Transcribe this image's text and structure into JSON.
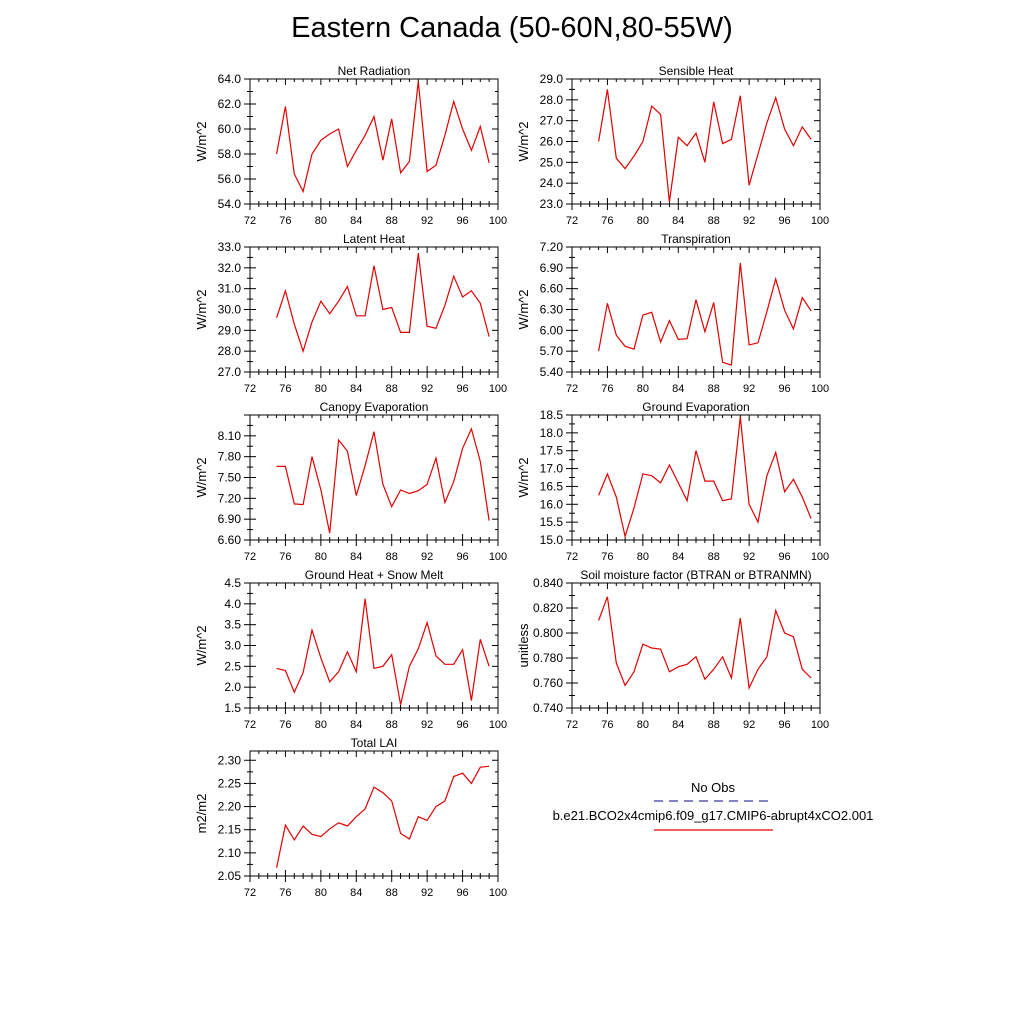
{
  "figure_title": "Eastern Canada (50-60N,80-55W)",
  "legend": {
    "obs_label": "No Obs",
    "obs_color": "#3a3aa0",
    "model_label": "b.e21.BCO2x4cmip6.f09_g17.CMIP6-abrupt4xCO2.001",
    "model_color": "#e00000"
  },
  "chart_data": [
    {
      "type": "line",
      "title": "Net Radiation",
      "ylabel": "W/m^2",
      "xlim": [
        72,
        100
      ],
      "xticks": [
        "72",
        "76",
        "80",
        "84",
        "88",
        "92",
        "96",
        "100"
      ],
      "ylim": [
        54.0,
        64.0
      ],
      "yticks": [
        "54.0",
        "56.0",
        "58.0",
        "60.0",
        "62.0",
        "64.0"
      ],
      "x": [
        75,
        76,
        77,
        78,
        79,
        80,
        81,
        82,
        83,
        84,
        85,
        86,
        87,
        88,
        89,
        90,
        91,
        92,
        93,
        94,
        95,
        96,
        97,
        98,
        99
      ],
      "series": [
        {
          "values": [
            58.0,
            61.8,
            56.4,
            55.0,
            58.0,
            59.1,
            59.6,
            60.0,
            57.0,
            58.3,
            59.5,
            61.0,
            57.5,
            60.8,
            56.5,
            57.4,
            63.8,
            56.6,
            57.1,
            59.5,
            62.2,
            60.0,
            58.3,
            60.2,
            57.3
          ]
        }
      ]
    },
    {
      "type": "line",
      "title": "Sensible Heat",
      "ylabel": "W/m^2",
      "xlim": [
        72,
        100
      ],
      "xticks": [
        "72",
        "76",
        "80",
        "84",
        "88",
        "92",
        "96",
        "100"
      ],
      "ylim": [
        23.0,
        29.0
      ],
      "yticks": [
        "23.0",
        "24.0",
        "25.0",
        "26.0",
        "27.0",
        "28.0",
        "29.0"
      ],
      "x": [
        75,
        76,
        77,
        78,
        79,
        80,
        81,
        82,
        83,
        84,
        85,
        86,
        87,
        88,
        89,
        90,
        91,
        92,
        93,
        94,
        95,
        96,
        97,
        98,
        99
      ],
      "series": [
        {
          "values": [
            26.0,
            28.5,
            25.2,
            24.7,
            25.3,
            26.0,
            27.7,
            27.3,
            23.1,
            26.2,
            25.8,
            26.4,
            25.0,
            27.9,
            25.9,
            26.1,
            28.2,
            23.9,
            25.4,
            26.9,
            28.1,
            26.6,
            25.8,
            26.7,
            26.1
          ]
        }
      ]
    },
    {
      "type": "line",
      "title": "Latent Heat",
      "ylabel": "W/m^2",
      "xlim": [
        72,
        100
      ],
      "xticks": [
        "72",
        "76",
        "80",
        "84",
        "88",
        "92",
        "96",
        "100"
      ],
      "ylim": [
        27.0,
        33.0
      ],
      "yticks": [
        "27.0",
        "28.0",
        "29.0",
        "30.0",
        "31.0",
        "32.0",
        "33.0"
      ],
      "x": [
        75,
        76,
        77,
        78,
        79,
        80,
        81,
        82,
        83,
        84,
        85,
        86,
        87,
        88,
        89,
        90,
        91,
        92,
        93,
        94,
        95,
        96,
        97,
        98,
        99
      ],
      "series": [
        {
          "values": [
            29.6,
            30.9,
            29.3,
            28.0,
            29.4,
            30.4,
            29.8,
            30.4,
            31.1,
            29.7,
            29.7,
            32.1,
            30.0,
            30.1,
            28.9,
            28.9,
            32.7,
            29.2,
            29.1,
            30.2,
            31.6,
            30.6,
            30.9,
            30.3,
            28.7
          ]
        }
      ]
    },
    {
      "type": "line",
      "title": "Transpiration",
      "ylabel": "W/m^2",
      "xlim": [
        72,
        100
      ],
      "xticks": [
        "72",
        "76",
        "80",
        "84",
        "88",
        "92",
        "96",
        "100"
      ],
      "ylim": [
        5.4,
        7.2
      ],
      "yticks": [
        "5.40",
        "5.70",
        "6.00",
        "6.30",
        "6.60",
        "6.90",
        "7.20"
      ],
      "x": [
        75,
        76,
        77,
        78,
        79,
        80,
        81,
        82,
        83,
        84,
        85,
        86,
        87,
        88,
        89,
        90,
        91,
        92,
        93,
        94,
        95,
        96,
        97,
        98,
        99
      ],
      "series": [
        {
          "values": [
            5.7,
            6.39,
            5.93,
            5.77,
            5.73,
            6.22,
            6.26,
            5.83,
            6.14,
            5.87,
            5.88,
            6.44,
            5.98,
            6.4,
            5.54,
            5.5,
            6.97,
            5.79,
            5.82,
            6.27,
            6.74,
            6.29,
            6.02,
            6.47,
            6.28
          ]
        }
      ]
    },
    {
      "type": "line",
      "title": "Canopy Evaporation",
      "ylabel": "W/m^2",
      "xlim": [
        72,
        100
      ],
      "xticks": [
        "72",
        "76",
        "80",
        "84",
        "88",
        "92",
        "96",
        "100"
      ],
      "ylim": [
        6.6,
        8.4
      ],
      "yticks": [
        "6.60",
        "6.90",
        "7.20",
        "7.50",
        "7.80",
        "8.10"
      ],
      "x": [
        75,
        76,
        77,
        78,
        79,
        80,
        81,
        82,
        83,
        84,
        85,
        86,
        87,
        88,
        89,
        90,
        91,
        92,
        93,
        94,
        95,
        96,
        97,
        98,
        99
      ],
      "series": [
        {
          "values": [
            7.66,
            7.66,
            7.12,
            7.11,
            7.8,
            7.32,
            6.7,
            8.04,
            7.88,
            7.24,
            7.67,
            8.16,
            7.4,
            7.08,
            7.32,
            7.27,
            7.31,
            7.4,
            7.78,
            7.14,
            7.44,
            7.92,
            8.2,
            7.73,
            6.88
          ]
        }
      ]
    },
    {
      "type": "line",
      "title": "Ground Evaporation",
      "ylabel": "W/m^2",
      "xlim": [
        72,
        100
      ],
      "xticks": [
        "72",
        "76",
        "80",
        "84",
        "88",
        "92",
        "96",
        "100"
      ],
      "ylim": [
        15.0,
        18.5
      ],
      "yticks": [
        "15.0",
        "15.5",
        "16.0",
        "16.5",
        "17.0",
        "17.5",
        "18.0",
        "18.5"
      ],
      "x": [
        75,
        76,
        77,
        78,
        79,
        80,
        81,
        82,
        83,
        84,
        85,
        86,
        87,
        88,
        89,
        90,
        91,
        92,
        93,
        94,
        95,
        96,
        97,
        98,
        99
      ],
      "series": [
        {
          "values": [
            16.25,
            16.85,
            16.2,
            15.1,
            15.9,
            16.85,
            16.8,
            16.6,
            17.1,
            16.6,
            16.1,
            17.5,
            16.65,
            16.65,
            16.1,
            16.15,
            18.45,
            16.0,
            15.5,
            16.8,
            17.45,
            16.35,
            16.7,
            16.2,
            15.6
          ]
        }
      ]
    },
    {
      "type": "line",
      "title": "Ground Heat + Snow Melt",
      "ylabel": "W/m^2",
      "xlim": [
        72,
        100
      ],
      "xticks": [
        "72",
        "76",
        "80",
        "84",
        "88",
        "92",
        "96",
        "100"
      ],
      "ylim": [
        1.5,
        4.5
      ],
      "yticks": [
        "1.5",
        "2.0",
        "2.5",
        "3.0",
        "3.5",
        "4.0",
        "4.5"
      ],
      "x": [
        75,
        76,
        77,
        78,
        79,
        80,
        81,
        82,
        83,
        84,
        85,
        86,
        87,
        88,
        89,
        90,
        91,
        92,
        93,
        94,
        95,
        96,
        97,
        98,
        99
      ],
      "series": [
        {
          "values": [
            2.45,
            2.4,
            1.88,
            2.35,
            3.37,
            2.7,
            2.13,
            2.37,
            2.85,
            2.37,
            4.12,
            2.45,
            2.5,
            2.78,
            1.58,
            2.5,
            2.92,
            3.55,
            2.75,
            2.55,
            2.55,
            2.9,
            1.68,
            3.15,
            2.5
          ]
        }
      ]
    },
    {
      "type": "line",
      "title": "Soil moisture factor (BTRAN or BTRANMN)",
      "ylabel": "unitless",
      "xlim": [
        72,
        100
      ],
      "xticks": [
        "72",
        "76",
        "80",
        "84",
        "88",
        "92",
        "96",
        "100"
      ],
      "ylim": [
        0.74,
        0.84
      ],
      "yticks": [
        "0.740",
        "0.760",
        "0.780",
        "0.800",
        "0.820",
        "0.840"
      ],
      "x": [
        75,
        76,
        77,
        78,
        79,
        80,
        81,
        82,
        83,
        84,
        85,
        86,
        87,
        88,
        89,
        90,
        91,
        92,
        93,
        94,
        95,
        96,
        97,
        98,
        99
      ],
      "series": [
        {
          "values": [
            0.81,
            0.829,
            0.776,
            0.758,
            0.769,
            0.791,
            0.788,
            0.787,
            0.769,
            0.773,
            0.775,
            0.781,
            0.763,
            0.771,
            0.781,
            0.764,
            0.812,
            0.756,
            0.771,
            0.781,
            0.818,
            0.8,
            0.797,
            0.771,
            0.764
          ]
        }
      ]
    },
    {
      "type": "line",
      "title": "Total LAI",
      "ylabel": "m2/m2",
      "xlim": [
        72,
        100
      ],
      "xticks": [
        "72",
        "76",
        "80",
        "84",
        "88",
        "92",
        "96",
        "100"
      ],
      "ylim": [
        2.05,
        2.32
      ],
      "yticks": [
        "2.05",
        "2.10",
        "2.15",
        "2.20",
        "2.25",
        "2.30"
      ],
      "x": [
        75,
        76,
        77,
        78,
        79,
        80,
        81,
        82,
        83,
        84,
        85,
        86,
        87,
        88,
        89,
        90,
        91,
        92,
        93,
        94,
        95,
        96,
        97,
        98,
        99
      ],
      "series": [
        {
          "values": [
            2.068,
            2.16,
            2.128,
            2.158,
            2.14,
            2.135,
            2.152,
            2.165,
            2.158,
            2.178,
            2.195,
            2.242,
            2.23,
            2.212,
            2.142,
            2.13,
            2.178,
            2.17,
            2.2,
            2.212,
            2.265,
            2.272,
            2.25,
            2.285,
            2.287
          ]
        }
      ]
    }
  ]
}
